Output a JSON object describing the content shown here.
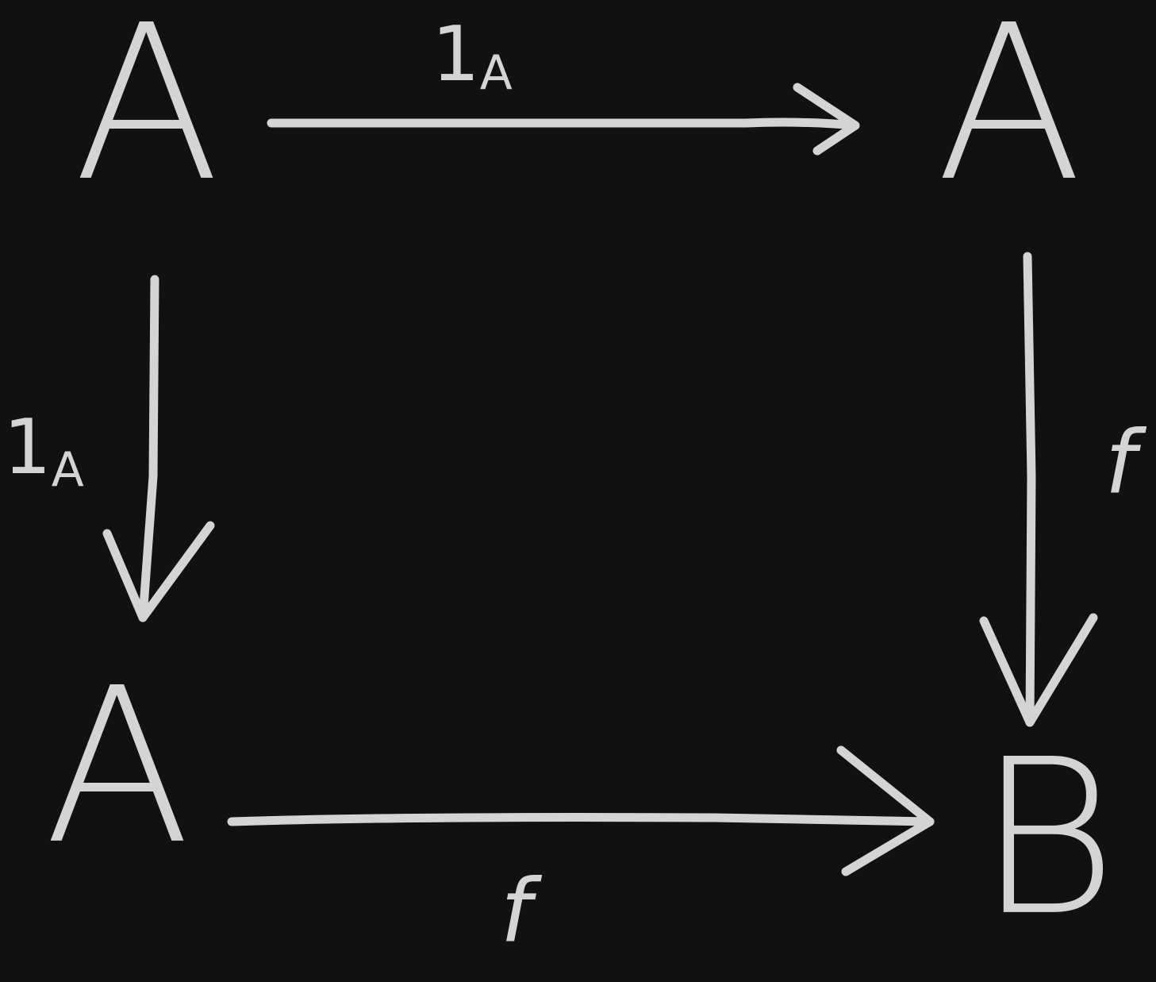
{
  "nodes": [
    {
      "label": "A"
    },
    {
      "label": "A"
    },
    {
      "label": "A"
    },
    {
      "label": "B"
    }
  ],
  "edges": [
    {
      "label": "1",
      "subscript": "A"
    },
    {
      "label": "1",
      "subscript": "A"
    },
    {
      "label": "f"
    },
    {
      "label": "f"
    }
  ]
}
